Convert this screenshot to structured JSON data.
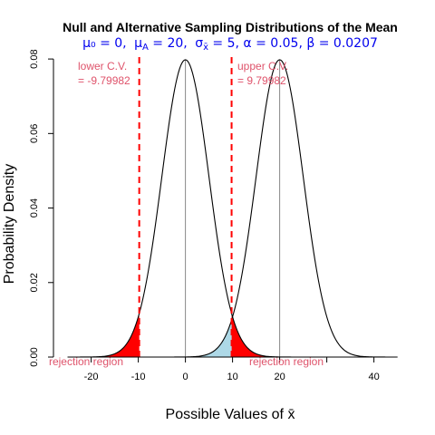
{
  "chart_data": {
    "type": "line",
    "title": "Null and Alternative Sampling Distributions of the Mean",
    "subtitle": "μ₀ = 0, μA = 20, σx̄ = 5, α = 0.05, β = 0.0207",
    "subtitle_parts": {
      "mu0": "μ₀ = 0,",
      "muA_sym": "μ",
      "muA_sub": "A",
      "muA_val": " = 20,",
      "sigma_sym": "σ",
      "sigma_sub": "x̄",
      "rest": " = 5, α = 0.05, β = 0.0207"
    },
    "xlabel": "Possible Values of x̄",
    "ylabel": "Probability Density",
    "xlim": [
      -28,
      47
    ],
    "ylim": [
      0,
      0.081
    ],
    "x_ticks": [
      "-20",
      "-10",
      "0",
      "10",
      "20",
      "40"
    ],
    "x_tick_values": [
      -20,
      -10,
      0,
      10,
      20,
      40
    ],
    "y_ticks": [
      "0.00",
      "0.02",
      "0.04",
      "0.06",
      "0.08"
    ],
    "y_tick_values": [
      0,
      0.02,
      0.04,
      0.06,
      0.08
    ],
    "series": [
      {
        "mean": 0,
        "sd": 5,
        "range": [
          -25,
          25
        ]
      },
      {
        "mean": 20,
        "sd": 5,
        "range": [
          -5,
          45
        ]
      }
    ],
    "critical_values": [
      -9.79982,
      9.79982
    ],
    "annotations": {
      "lower_cv_label": "lower C.V.",
      "lower_cv_value": "= -9.79982",
      "upper_cv_label": "upper C.V.",
      "upper_cv_value": "= 9.79982",
      "rejection_left": "rejection region",
      "rejection_right": "rejection region"
    },
    "colors": {
      "curve": "#000000",
      "alpha_fill": "#ff0000",
      "beta_fill": "#add8e6",
      "cv_line": "#ff0000",
      "annotation": "#df536b",
      "subtitle": "#0000ee",
      "mean_line": "#888888"
    }
  }
}
